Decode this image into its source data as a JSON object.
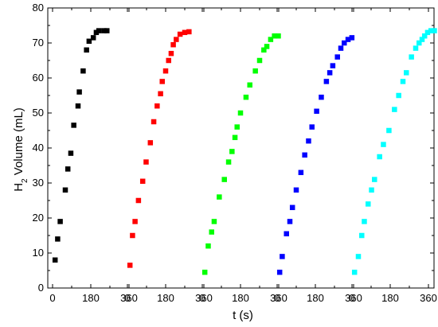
{
  "chart_data": {
    "type": "scatter",
    "xlabel": "t (s)",
    "ylabel_main": "H",
    "ylabel_sub": "2",
    "ylabel_rest": " Volume (mL)",
    "ylim": [
      0,
      80
    ],
    "yticks": [
      0,
      10,
      20,
      30,
      40,
      50,
      60,
      70,
      80
    ],
    "panel_x_range": [
      0,
      360
    ],
    "panels": 5,
    "xtick_labels": [
      "0",
      "180",
      "360",
      "0",
      "180",
      "360",
      "0",
      "180",
      "360",
      "0",
      "180",
      "360",
      "0",
      "180",
      "360"
    ],
    "series": [
      {
        "color": "#000000",
        "points": [
          [
            12,
            8
          ],
          [
            24,
            14
          ],
          [
            36,
            19
          ],
          [
            60,
            28
          ],
          [
            72,
            34
          ],
          [
            86,
            38.5
          ],
          [
            100,
            46.5
          ],
          [
            120,
            52
          ],
          [
            126,
            56
          ],
          [
            144,
            62
          ],
          [
            160,
            68
          ],
          [
            172,
            70.5
          ],
          [
            192,
            71.5
          ],
          [
            206,
            73
          ],
          [
            218,
            73.5
          ],
          [
            242,
            73.5
          ],
          [
            256,
            73.5
          ]
        ]
      },
      {
        "color": "#ff0000",
        "points": [
          [
            12,
            6.5
          ],
          [
            24,
            15
          ],
          [
            36,
            19
          ],
          [
            52,
            25
          ],
          [
            72,
            30.5
          ],
          [
            88,
            36
          ],
          [
            108,
            41.5
          ],
          [
            124,
            47.5
          ],
          [
            140,
            52
          ],
          [
            156,
            55.5
          ],
          [
            164,
            59
          ],
          [
            180,
            62
          ],
          [
            194,
            65
          ],
          [
            206,
            67
          ],
          [
            216,
            69.5
          ],
          [
            230,
            71
          ],
          [
            248,
            72.5
          ],
          [
            270,
            73
          ],
          [
            290,
            73.2
          ]
        ]
      },
      {
        "color": "#00ff00",
        "points": [
          [
            12,
            4.5
          ],
          [
            28,
            12
          ],
          [
            44,
            16
          ],
          [
            56,
            19
          ],
          [
            80,
            26
          ],
          [
            104,
            31
          ],
          [
            124,
            36
          ],
          [
            140,
            39
          ],
          [
            154,
            43
          ],
          [
            164,
            46
          ],
          [
            180,
            50
          ],
          [
            206,
            54.5
          ],
          [
            224,
            58
          ],
          [
            250,
            62
          ],
          [
            270,
            65
          ],
          [
            290,
            68
          ],
          [
            304,
            69
          ],
          [
            322,
            71
          ],
          [
            340,
            72
          ],
          [
            358,
            72
          ]
        ]
      },
      {
        "color": "#0000ff",
        "points": [
          [
            12,
            4.5
          ],
          [
            24,
            9
          ],
          [
            44,
            15.5
          ],
          [
            60,
            19
          ],
          [
            72,
            23
          ],
          [
            90,
            28
          ],
          [
            112,
            33
          ],
          [
            130,
            38
          ],
          [
            148,
            42
          ],
          [
            164,
            46
          ],
          [
            186,
            50.5
          ],
          [
            208,
            54.5
          ],
          [
            232,
            59
          ],
          [
            248,
            61.5
          ],
          [
            262,
            63.5
          ],
          [
            284,
            66
          ],
          [
            300,
            68.5
          ],
          [
            316,
            70
          ],
          [
            334,
            71
          ],
          [
            352,
            71.5
          ]
        ]
      },
      {
        "color": "#00ffff",
        "points": [
          [
            12,
            4.5
          ],
          [
            30,
            9
          ],
          [
            46,
            15
          ],
          [
            58,
            19
          ],
          [
            76,
            24
          ],
          [
            92,
            28
          ],
          [
            106,
            31
          ],
          [
            130,
            37.5
          ],
          [
            148,
            41
          ],
          [
            174,
            45
          ],
          [
            200,
            51
          ],
          [
            220,
            55
          ],
          [
            240,
            59
          ],
          [
            256,
            61.5
          ],
          [
            280,
            66
          ],
          [
            300,
            68.5
          ],
          [
            316,
            70
          ],
          [
            330,
            71
          ],
          [
            342,
            72
          ],
          [
            356,
            73
          ],
          [
            372,
            73.5
          ],
          [
            388,
            73.5
          ]
        ]
      }
    ]
  }
}
